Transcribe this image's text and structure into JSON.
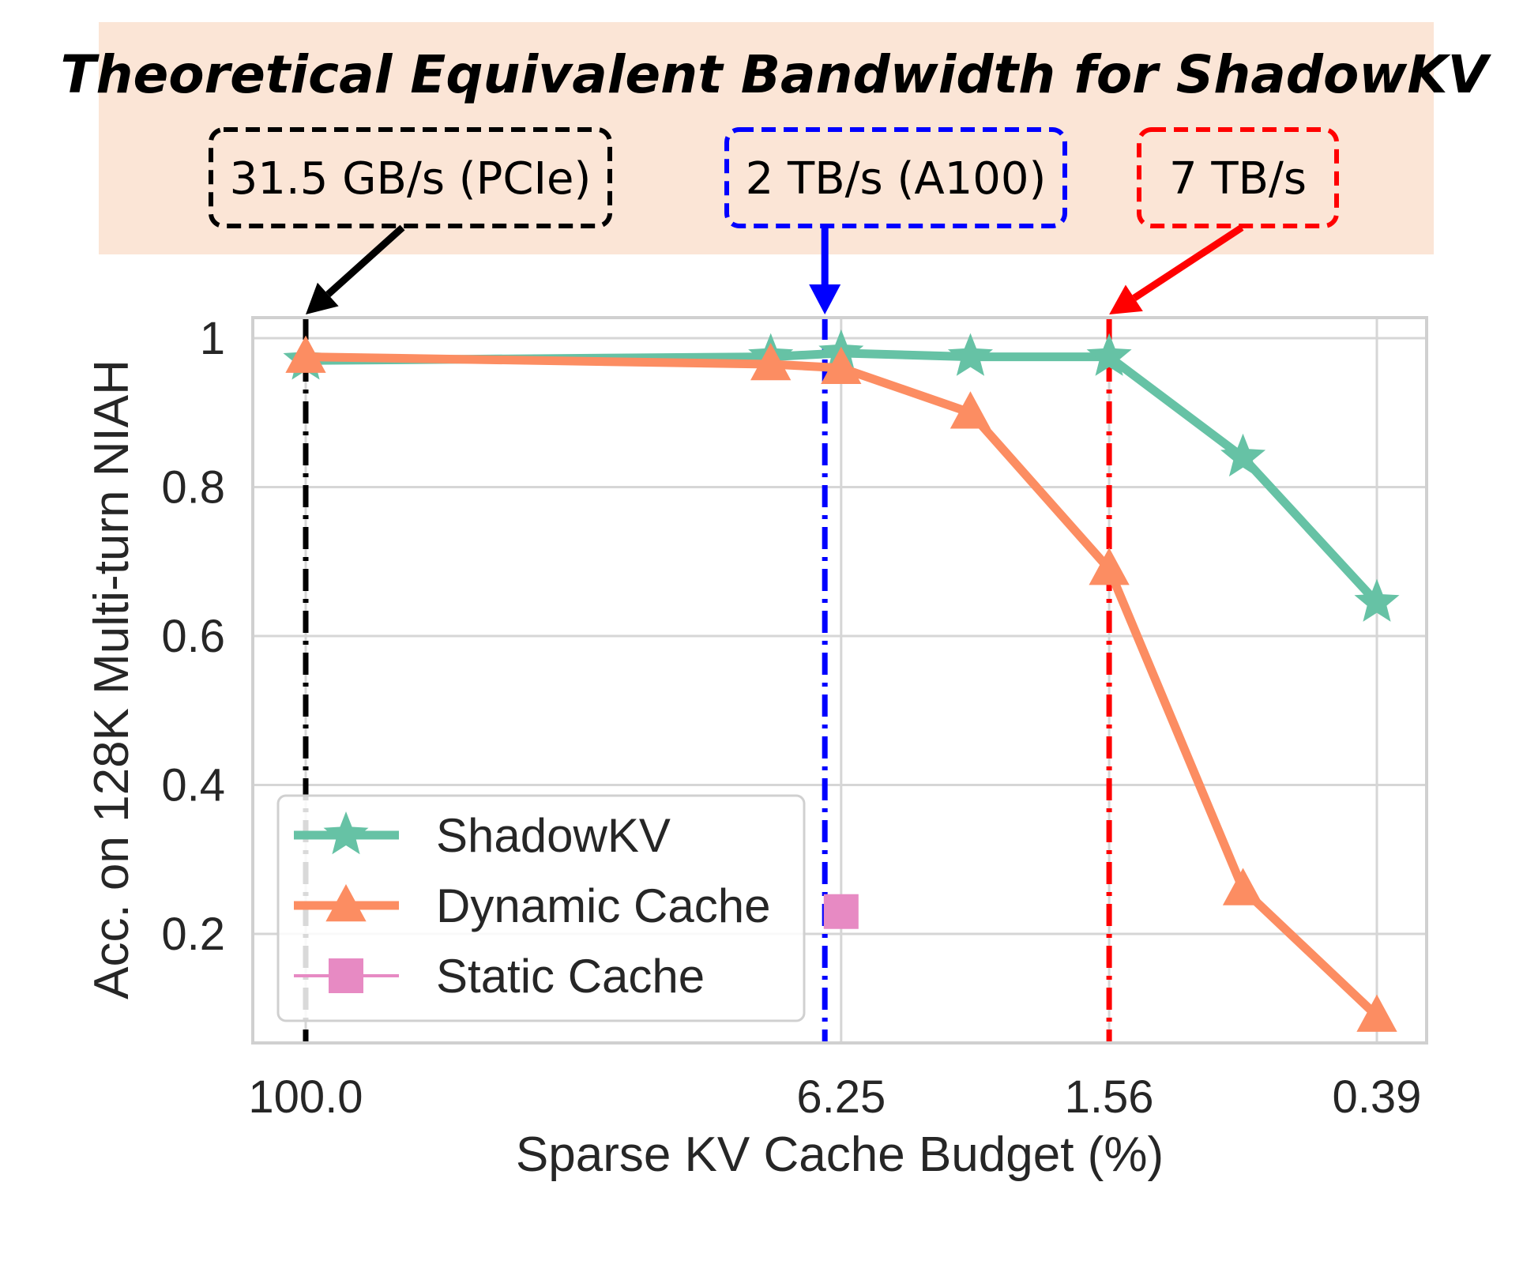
{
  "chart_data": {
    "type": "line",
    "title": "Theoretical Equivalent Bandwidth for ShadowKV",
    "xlabel": "Sparse KV Cache Budget (%)",
    "ylabel": "Acc. on 128K Multi-turn NIAH",
    "x_scale": "log",
    "x_reversed": true,
    "x_ticks": [
      100.0,
      6.25,
      1.56,
      0.39
    ],
    "x_tick_labels": [
      "100.0",
      "6.25",
      "1.56",
      "0.39"
    ],
    "y_ticks": [
      0.2,
      0.4,
      0.6,
      0.8,
      1
    ],
    "y_tick_labels": [
      "0.2",
      "0.4",
      "0.6",
      "0.8",
      "1"
    ],
    "ylim": [
      0.06,
      1.03
    ],
    "grid": true,
    "legend_position": "lower-left",
    "series": [
      {
        "name": "ShadowKV",
        "color": "#66c2a5",
        "marker": "star",
        "x": [
          100.0,
          9.0,
          6.25,
          3.2,
          1.56,
          0.78,
          0.39
        ],
        "y": [
          0.97,
          0.975,
          0.98,
          0.975,
          0.975,
          0.84,
          0.645
        ]
      },
      {
        "name": "Dynamic Cache",
        "color": "#fc8d62",
        "marker": "triangle",
        "x": [
          100.0,
          9.0,
          6.25,
          3.2,
          1.56,
          0.78,
          0.39
        ],
        "y": [
          0.975,
          0.965,
          0.96,
          0.9,
          0.69,
          0.26,
          0.09
        ]
      },
      {
        "name": "Static Cache",
        "color": "#e78ac3",
        "marker": "square",
        "x": [
          6.25
        ],
        "y": [
          0.23
        ]
      }
    ],
    "bandwidth_markers": [
      {
        "label": "31.5 GB/s (PCIe)",
        "x": 100.0,
        "color": "#000000"
      },
      {
        "label": "2 TB/s (A100)",
        "x": 6.8,
        "color": "#0000ff"
      },
      {
        "label": "7 TB/s",
        "x": 1.56,
        "color": "#ff0000"
      }
    ]
  },
  "banner": {
    "background": "#fbe5d6"
  }
}
